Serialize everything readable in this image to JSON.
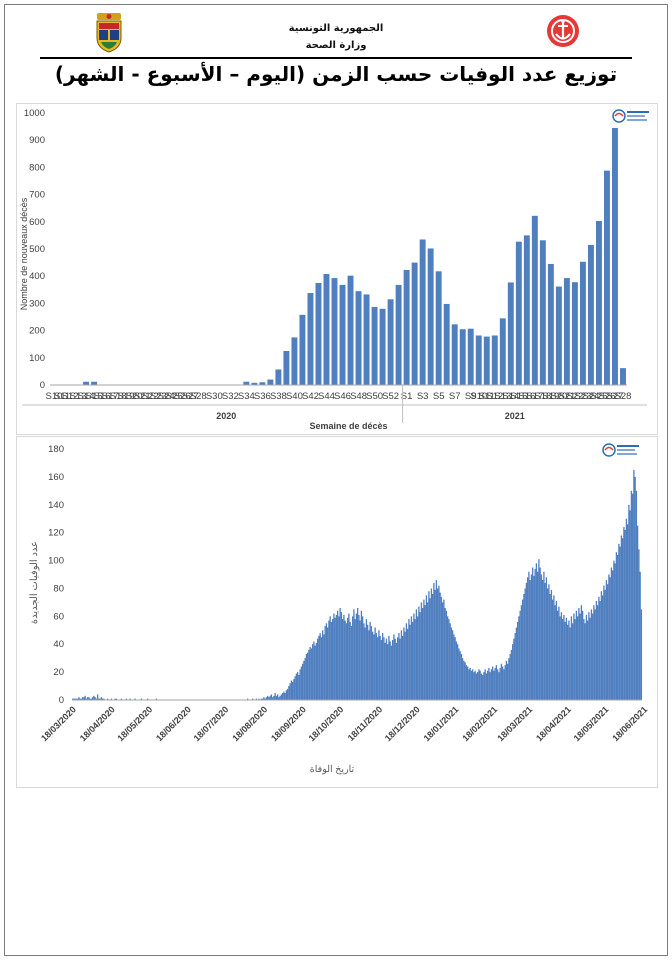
{
  "header": {
    "line1": "الجمهورية التونسية",
    "line2": "وزارة الصحة"
  },
  "title": "توزيع عدد الوفيات حسب الزمن (اليوم – الأسبوع - الشهر)",
  "colors": {
    "bar": "#4f7fbf",
    "axis": "#7f7f7f",
    "grid": "#d9d9d9"
  },
  "icons": {
    "left_logo": "tunisia-coat-of-arms-icon",
    "right_logo": "red-crescent-anchor-icon",
    "watermark": "onmne-watermark-icon"
  },
  "chart_data": [
    {
      "type": "bar",
      "ylabel": "Nombre de nouveaux décès",
      "xlabel": "Semaine de décès",
      "ylim": [
        0,
        1000
      ],
      "yticks": [
        0,
        100,
        200,
        300,
        400,
        500,
        600,
        700,
        800,
        900,
        1000
      ],
      "groups": [
        {
          "label": "2020",
          "weeks": [
            "S10",
            "S11",
            "S12",
            "S13",
            "S14",
            "S15",
            "S16",
            "S17",
            "S18",
            "S19",
            "S20",
            "S21",
            "S22",
            "S23",
            "S24",
            "S25",
            "S26",
            "S27",
            "S28",
            "S29",
            "S30",
            "S31",
            "S32",
            "S33",
            "S34",
            "S35",
            "S36",
            "S37",
            "S38",
            "S39",
            "S40",
            "S41",
            "S42",
            "S43",
            "S44",
            "S45",
            "S46",
            "S47",
            "S48",
            "S49",
            "S50",
            "S51",
            "S52",
            "S53"
          ],
          "values": [
            0,
            0,
            0,
            0,
            12,
            12,
            0,
            0,
            0,
            0,
            0,
            0,
            0,
            0,
            0,
            0,
            0,
            0,
            0,
            0,
            0,
            0,
            0,
            0,
            12,
            8,
            10,
            20,
            57,
            125,
            175,
            258,
            338,
            375,
            408,
            393,
            368,
            402,
            345,
            333,
            287,
            280,
            315,
            368
          ]
        },
        {
          "label": "2021",
          "weeks": [
            "S1",
            "S2",
            "S3",
            "S4",
            "S5",
            "S6",
            "S7",
            "S8",
            "S9",
            "S10",
            "S11",
            "S12",
            "S13",
            "S14",
            "S15",
            "S16",
            "S17",
            "S18",
            "S19",
            "S20",
            "S21",
            "S22",
            "S23",
            "S24",
            "S25",
            "S26",
            "S27",
            "S28"
          ],
          "values": [
            423,
            450,
            535,
            502,
            418,
            298,
            223,
            205,
            207,
            182,
            178,
            182,
            245,
            377,
            527,
            550,
            622,
            532,
            445,
            362,
            393,
            378,
            453,
            515,
            603,
            788,
            945,
            62
          ]
        }
      ],
      "tick_labels": [
        "S10",
        "S12",
        "S14",
        "S16",
        "S18",
        "S20",
        "S22",
        "S24",
        "S26",
        "S28",
        "S30",
        "S32",
        "S34",
        "S36",
        "S38",
        "S40",
        "S42",
        "S44",
        "S46",
        "S48",
        "S50",
        "S52",
        "S1",
        "S3",
        "S5",
        "S7",
        "S9",
        "S11",
        "S13",
        "S15",
        "S17",
        "S19",
        "S21",
        "S23",
        "S25",
        "S27"
      ]
    },
    {
      "type": "bar",
      "ylabel": "عدد الوفيات الجديدة",
      "xlabel": "تاريخ الوفاة",
      "ylim": [
        0,
        180
      ],
      "yticks": [
        0,
        20,
        40,
        60,
        80,
        100,
        120,
        140,
        160,
        180
      ],
      "x_start": "2020-03-18",
      "x_end": "2021-07-12",
      "tick_labels": [
        "18/03/2020",
        "18/04/2020",
        "18/05/2020",
        "18/06/2020",
        "18/07/2020",
        "18/08/2020",
        "18/09/2020",
        "18/10/2020",
        "18/11/2020",
        "18/12/2020",
        "18/01/2021",
        "18/02/2021",
        "18/03/2021",
        "18/04/2021",
        "18/05/2021",
        "18/06/2021"
      ],
      "series": [
        {
          "values": [
            1,
            1,
            1,
            1,
            1,
            2,
            1,
            1,
            2,
            2,
            3,
            1,
            2,
            2,
            1,
            1,
            2,
            3,
            2,
            1,
            4,
            1,
            1,
            2,
            1,
            1,
            0,
            0,
            1,
            0,
            0,
            1,
            0,
            0,
            1,
            1,
            0,
            0,
            0,
            1,
            0,
            0,
            0,
            1,
            0,
            0,
            1,
            0,
            0,
            0,
            1,
            0,
            0,
            0,
            0,
            1,
            0,
            0,
            0,
            0,
            1,
            0,
            0,
            0,
            0,
            0,
            0,
            1,
            0,
            0,
            0,
            0,
            0,
            0,
            0,
            0,
            0,
            0,
            0,
            0,
            0,
            0,
            0,
            0,
            0,
            0,
            0,
            0,
            0,
            0,
            0,
            0,
            0,
            0,
            0,
            0,
            0,
            0,
            0,
            0,
            0,
            0,
            0,
            0,
            0,
            0,
            0,
            0,
            0,
            0,
            0,
            0,
            0,
            0,
            0,
            0,
            0,
            0,
            0,
            0,
            0,
            0,
            0,
            0,
            0,
            0,
            0,
            0,
            0,
            0,
            0,
            0,
            0,
            0,
            0,
            0,
            0,
            0,
            0,
            0,
            1,
            0,
            0,
            0,
            1,
            0,
            0,
            1,
            0,
            1,
            0,
            1,
            1,
            2,
            1,
            2,
            3,
            2,
            3,
            4,
            2,
            3,
            5,
            3,
            4,
            2,
            3,
            4,
            5,
            6,
            5,
            7,
            8,
            10,
            12,
            14,
            13,
            15,
            17,
            19,
            20,
            18,
            22,
            24,
            26,
            28,
            30,
            33,
            34,
            36,
            38,
            37,
            40,
            42,
            39,
            41,
            44,
            46,
            48,
            45,
            50,
            47,
            53,
            55,
            52,
            57,
            60,
            56,
            58,
            62,
            59,
            61,
            64,
            60,
            66,
            63,
            58,
            61,
            57,
            55,
            59,
            62,
            56,
            53,
            60,
            65,
            58,
            62,
            66,
            61,
            57,
            64,
            60,
            55,
            52,
            58,
            54,
            50,
            56,
            53,
            49,
            47,
            52,
            48,
            45,
            50,
            46,
            43,
            48,
            45,
            41,
            44,
            40,
            46,
            42,
            39,
            43,
            47,
            44,
            41,
            45,
            48,
            44,
            50,
            46,
            52,
            49,
            55,
            51,
            58,
            54,
            60,
            56,
            62,
            58,
            65,
            60,
            67,
            63,
            70,
            66,
            72,
            68,
            75,
            70,
            78,
            73,
            80,
            76,
            84,
            79,
            86,
            80,
            82,
            77,
            74,
            70,
            72,
            66,
            64,
            60,
            58,
            55,
            52,
            50,
            47,
            45,
            42,
            40,
            37,
            35,
            33,
            30,
            28,
            27,
            25,
            24,
            22,
            23,
            21,
            22,
            20,
            21,
            19,
            20,
            22,
            21,
            19,
            18,
            20,
            22,
            19,
            21,
            23,
            20,
            22,
            24,
            21,
            23,
            25,
            22,
            20,
            23,
            26,
            24,
            22,
            25,
            28,
            26,
            30,
            33,
            36,
            40,
            44,
            48,
            52,
            56,
            60,
            64,
            68,
            72,
            76,
            80,
            84,
            88,
            92,
            86,
            90,
            95,
            89,
            94,
            98,
            92,
            101,
            95,
            90,
            86,
            92,
            84,
            88,
            80,
            83,
            76,
            79,
            72,
            75,
            68,
            71,
            64,
            67,
            60,
            63,
            58,
            61,
            56,
            59,
            54,
            57,
            52,
            60,
            55,
            62,
            58,
            64,
            60,
            66,
            62,
            68,
            64,
            58,
            55,
            61,
            57,
            63,
            59,
            65,
            62,
            68,
            65,
            71,
            68,
            74,
            71,
            78,
            75,
            82,
            79,
            86,
            83,
            90,
            88,
            95,
            93,
            100,
            98,
            106,
            104,
            112,
            110,
            118,
            116,
            124,
            122,
            130,
            126,
            140,
            136,
            150,
            148,
            165,
            160,
            150,
            125,
            108,
            92,
            65
          ]
        }
      ]
    }
  ]
}
